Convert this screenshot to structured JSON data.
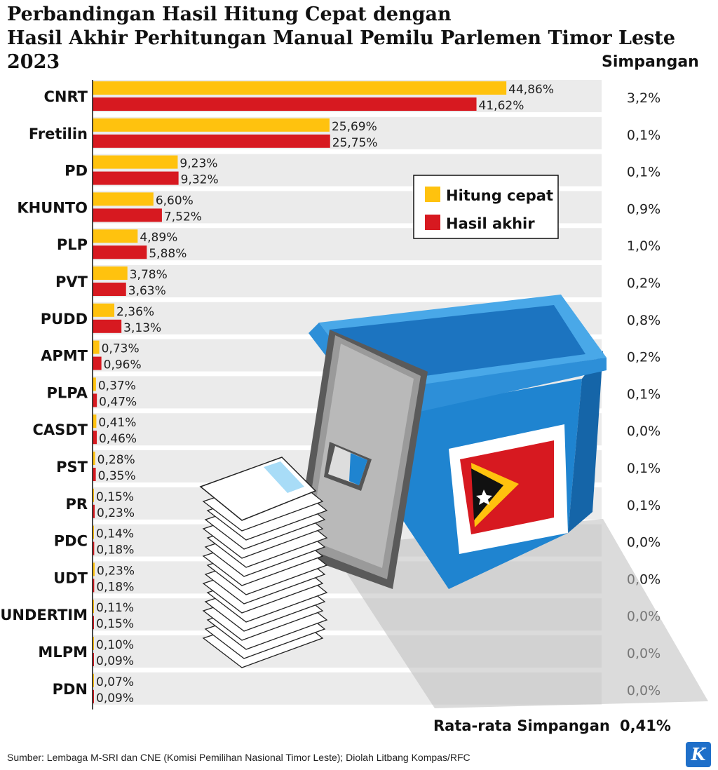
{
  "title_line1": "Perbandingan Hasil Hitung Cepat dengan",
  "title_line2": "Hasil Akhir Perhitungan Manual Pemilu Parlemen Timor Leste 2023",
  "deviation_header": "Simpangan",
  "average_label": "Rata-rata Simpangan",
  "average_value": "0,41%",
  "source_text": "Sumber: Lembaga M-SRI dan CNE (Komisi Pemilihan Nasional Timor Leste); Diolah Litbang Kompas/RFC",
  "logo_letter": "K",
  "colors": {
    "quick_count": "#ffc20e",
    "final": "#d71920",
    "row_bg": "#ebebeb"
  },
  "icons": [
    "ballot-box-icon",
    "timor-leste-flag-icon",
    "ballot-papers-icon"
  ],
  "chart_data": {
    "type": "bar",
    "orientation": "horizontal",
    "categories": [
      "CNRT",
      "Fretilin",
      "PD",
      "KHUNTO",
      "PLP",
      "PVT",
      "PUDD",
      "APMT",
      "PLPA",
      "CASDT",
      "PST",
      "PR",
      "PDC",
      "UDT",
      "UNDERTIM",
      "MLPM",
      "PDN"
    ],
    "series": [
      {
        "name": "Hitung cepat",
        "color": "#ffc20e",
        "values": [
          44.86,
          25.69,
          9.23,
          6.6,
          4.89,
          3.78,
          2.36,
          0.73,
          0.37,
          0.41,
          0.28,
          0.15,
          0.14,
          0.23,
          0.11,
          0.1,
          0.07
        ],
        "labels": [
          "44,86%",
          "25,69%",
          "9,23%",
          "6,60%",
          "4,89%",
          "3,78%",
          "2,36%",
          "0,73%",
          "0,37%",
          "0,41%",
          "0,28%",
          "0,15%",
          "0,14%",
          "0,23%",
          "0,11%",
          "0,10%",
          "0,07%"
        ]
      },
      {
        "name": "Hasil akhir",
        "color": "#d71920",
        "values": [
          41.62,
          25.75,
          9.32,
          7.52,
          5.88,
          3.63,
          3.13,
          0.96,
          0.47,
          0.46,
          0.35,
          0.23,
          0.18,
          0.18,
          0.15,
          0.09,
          0.09
        ],
        "labels": [
          "41,62%",
          "25,75%",
          "9,32%",
          "7,52%",
          "5,88%",
          "3,63%",
          "3,13%",
          "0,96%",
          "0,47%",
          "0,46%",
          "0,35%",
          "0,23%",
          "0,18%",
          "0,18%",
          "0,15%",
          "0,09%",
          "0,09%"
        ]
      }
    ],
    "deviation": [
      "3,2%",
      "0,1%",
      "0,1%",
      "0,9%",
      "1,0%",
      "0,2%",
      "0,8%",
      "0,2%",
      "0,1%",
      "0,0%",
      "0,1%",
      "0,1%",
      "0,0%",
      "0,0%",
      "0,0%",
      "0,0%",
      "0,0%"
    ],
    "legend": [
      "Hitung cepat",
      "Hasil akhir"
    ],
    "legend_position": "right",
    "xlim": [
      0,
      45
    ]
  }
}
